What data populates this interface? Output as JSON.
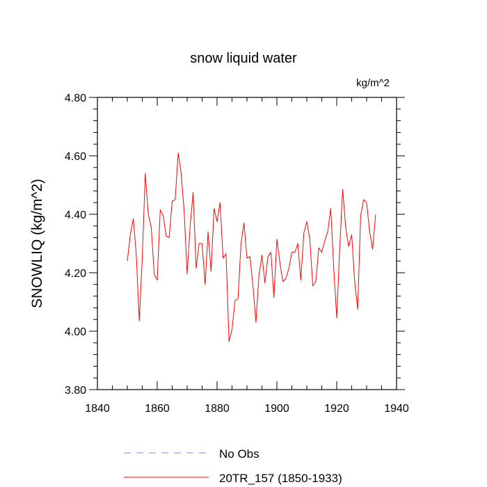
{
  "chart_data": {
    "type": "line",
    "title": "snow liquid water",
    "units": "kg/m^2",
    "xlabel": "",
    "ylabel": "SNOWLIQ  (kg/m^2)",
    "xlim": [
      1840,
      1940
    ],
    "ylim": [
      3.8,
      4.8
    ],
    "x_ticks": [
      1840,
      1860,
      1880,
      1900,
      1920,
      1940
    ],
    "x_tick_labels": [
      "1840",
      "1860",
      "1880",
      "1900",
      "1920",
      "1940"
    ],
    "y_ticks": [
      3.8,
      4.0,
      4.2,
      4.4,
      4.6,
      4.8
    ],
    "y_tick_labels": [
      "3.80",
      "4.00",
      "4.20",
      "4.40",
      "4.60",
      "4.80"
    ],
    "series": [
      {
        "name": "20TR_157 (1850-1933)",
        "color": "#ff0000",
        "style": "solid",
        "x": [
          1850,
          1851,
          1852,
          1853,
          1854,
          1855,
          1856,
          1857,
          1858,
          1859,
          1860,
          1861,
          1862,
          1863,
          1864,
          1865,
          1866,
          1867,
          1868,
          1869,
          1870,
          1871,
          1872,
          1873,
          1874,
          1875,
          1876,
          1877,
          1878,
          1879,
          1880,
          1881,
          1882,
          1883,
          1884,
          1885,
          1886,
          1887,
          1888,
          1889,
          1890,
          1891,
          1892,
          1893,
          1894,
          1895,
          1896,
          1897,
          1898,
          1899,
          1900,
          1901,
          1902,
          1903,
          1904,
          1905,
          1906,
          1907,
          1908,
          1909,
          1910,
          1911,
          1912,
          1913,
          1914,
          1915,
          1916,
          1917,
          1918,
          1919,
          1920,
          1921,
          1922,
          1923,
          1924,
          1925,
          1926,
          1927,
          1928,
          1929,
          1930,
          1931,
          1932,
          1933
        ],
        "values": [
          4.24,
          4.33,
          4.385,
          4.26,
          4.035,
          4.25,
          4.54,
          4.4,
          4.355,
          4.195,
          4.175,
          4.415,
          4.395,
          4.325,
          4.32,
          4.445,
          4.45,
          4.61,
          4.54,
          4.41,
          4.195,
          4.36,
          4.475,
          4.215,
          4.3,
          4.3,
          4.16,
          4.34,
          4.205,
          4.42,
          4.375,
          4.44,
          4.25,
          4.265,
          3.965,
          4.005,
          4.105,
          4.11,
          4.3,
          4.37,
          4.25,
          4.255,
          4.155,
          4.03,
          4.19,
          4.26,
          4.165,
          4.255,
          4.27,
          4.115,
          4.315,
          4.235,
          4.17,
          4.18,
          4.215,
          4.27,
          4.27,
          4.3,
          4.175,
          4.335,
          4.375,
          4.315,
          4.155,
          4.17,
          4.285,
          4.27,
          4.31,
          4.34,
          4.42,
          4.215,
          4.045,
          4.285,
          4.485,
          4.355,
          4.29,
          4.33,
          4.17,
          4.075,
          4.395,
          4.45,
          4.44,
          4.34,
          4.28,
          4.4
        ]
      },
      {
        "name": "No Obs",
        "color": "#8080ff",
        "style": "dashed",
        "x": [],
        "values": []
      }
    ],
    "legend_position": "bottom-center"
  }
}
